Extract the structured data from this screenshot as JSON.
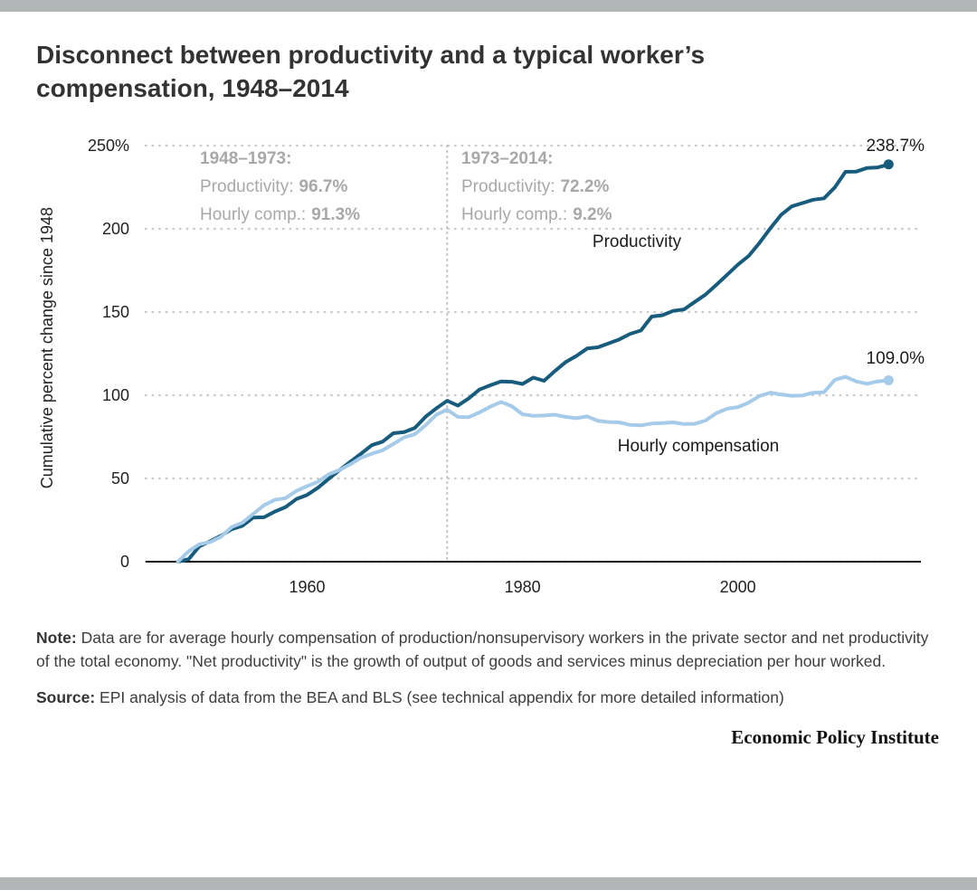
{
  "header": {
    "title": "Disconnect between productivity and a typical worker’s compensation, 1948–2014"
  },
  "chart_data": {
    "type": "line",
    "title": "Disconnect between productivity and a typical worker’s compensation, 1948–2014",
    "xlabel": "",
    "ylabel": "Cumulative percent change since 1948",
    "ylim": [
      0,
      250
    ],
    "x_domain": [
      1945,
      2017
    ],
    "grid": "dotted-horizontal",
    "legend_position": "inline-labels",
    "divider_year": 1973,
    "yticks": [
      {
        "value": 0,
        "label": "0"
      },
      {
        "value": 50,
        "label": "50"
      },
      {
        "value": 100,
        "label": "100"
      },
      {
        "value": 150,
        "label": "150"
      },
      {
        "value": 200,
        "label": "200"
      },
      {
        "value": 250,
        "label": "250%"
      }
    ],
    "xticks": [
      {
        "value": 1960,
        "label": "1960"
      },
      {
        "value": 1980,
        "label": "1980"
      },
      {
        "value": 2000,
        "label": "2000"
      }
    ],
    "years": [
      1948,
      1949,
      1950,
      1951,
      1952,
      1953,
      1954,
      1955,
      1956,
      1957,
      1958,
      1959,
      1960,
      1961,
      1962,
      1963,
      1964,
      1965,
      1966,
      1967,
      1968,
      1969,
      1970,
      1971,
      1972,
      1973,
      1974,
      1975,
      1976,
      1977,
      1978,
      1979,
      1980,
      1981,
      1982,
      1983,
      1984,
      1985,
      1986,
      1987,
      1988,
      1989,
      1990,
      1991,
      1992,
      1993,
      1994,
      1995,
      1996,
      1997,
      1998,
      1999,
      2000,
      2001,
      2002,
      2003,
      2004,
      2005,
      2006,
      2007,
      2008,
      2009,
      2010,
      2011,
      2012,
      2013,
      2014
    ],
    "series": [
      {
        "name": "Productivity",
        "color": "#175b7d",
        "end_label": "238.7%",
        "values": [
          0.0,
          1.5,
          9.3,
          12.3,
          15.6,
          19.5,
          21.6,
          26.5,
          26.7,
          30.1,
          32.8,
          37.6,
          40.1,
          44.4,
          49.8,
          55.0,
          60.0,
          64.9,
          70.0,
          72.1,
          77.2,
          77.9,
          80.4,
          87.1,
          92.2,
          96.7,
          93.8,
          98.1,
          103.4,
          106.0,
          108.3,
          108.1,
          106.8,
          110.6,
          108.7,
          114.5,
          119.9,
          123.6,
          128.1,
          128.8,
          131.2,
          133.6,
          136.9,
          138.9,
          147.3,
          148.1,
          150.7,
          151.6,
          156.1,
          160.5,
          166.3,
          172.4,
          178.5,
          183.7,
          191.5,
          200.2,
          208.3,
          213.5,
          215.5,
          217.5,
          218.3,
          224.9,
          234.3,
          234.4,
          236.6,
          236.9,
          238.7
        ]
      },
      {
        "name": "Hourly compensation",
        "color": "#a6cbe9",
        "end_label": "109.0%",
        "values": [
          0.0,
          6.3,
          10.5,
          11.8,
          15.0,
          20.8,
          23.5,
          28.7,
          33.9,
          37.1,
          38.2,
          42.5,
          45.4,
          48.0,
          52.5,
          55.0,
          58.5,
          62.5,
          64.9,
          66.9,
          70.7,
          74.7,
          76.6,
          82.0,
          88.3,
          91.3,
          87.0,
          86.8,
          89.7,
          93.1,
          96.0,
          93.4,
          88.6,
          87.6,
          87.8,
          88.3,
          87.0,
          86.2,
          87.3,
          84.6,
          83.9,
          83.7,
          82.2,
          81.9,
          83.0,
          83.3,
          83.7,
          82.7,
          82.8,
          84.8,
          89.2,
          91.9,
          92.9,
          95.6,
          99.5,
          101.6,
          100.5,
          99.7,
          99.9,
          101.5,
          101.8,
          109.3,
          111.1,
          108.3,
          106.9,
          108.3,
          109.0
        ]
      }
    ],
    "annotations": [
      {
        "title": "1948–1973:",
        "lines": [
          {
            "label": "Productivity:",
            "value": "96.7%"
          },
          {
            "label": "Hourly comp.:",
            "value": "91.3%"
          }
        ]
      },
      {
        "title": "1973–2014:",
        "lines": [
          {
            "label": "Productivity:",
            "value": "72.2%"
          },
          {
            "label": "Hourly comp.:",
            "value": "9.2%"
          }
        ]
      }
    ]
  },
  "notes": {
    "note_label": "Note:",
    "note_text": " Data are for average hourly compensation of production/nonsupervisory workers in the private sector and net productivity of the total economy. \"Net productivity\" is the growth of output of goods and services minus depreciation per hour worked.",
    "source_label": "Source:",
    "source_text": " EPI analysis of data from the BEA and BLS (see technical appendix for more detailed information)"
  },
  "footer": {
    "brand": "Economic Policy Institute"
  }
}
